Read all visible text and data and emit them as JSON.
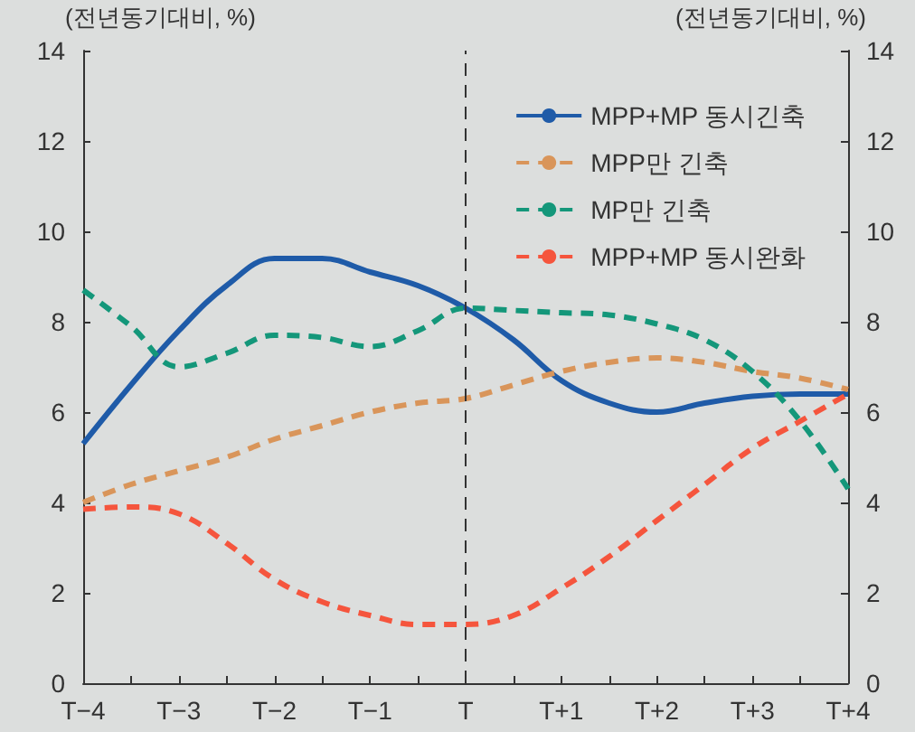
{
  "chart_data": {
    "type": "line",
    "ylabel": "(전년동기대비, %)",
    "y2label": "(전년동기대비, %)",
    "categories": [
      "T−4",
      null,
      "T−3",
      null,
      "T−2",
      null,
      "T−1",
      null,
      "T",
      null,
      "T+1",
      null,
      "T+2",
      null,
      "T+3",
      null,
      "T+4"
    ],
    "series": [
      {
        "name": "MPP+MP 동시긴축",
        "color": "#1f5ba8",
        "line_style": "solid",
        "values": [
          5.3,
          6.6,
          7.8,
          8.8,
          9.4,
          9.4,
          9.1,
          8.8,
          8.3,
          7.6,
          6.7,
          6.2,
          6.0,
          6.2,
          6.35,
          6.4,
          6.4
        ]
      },
      {
        "name": "MPP만 긴축",
        "color": "#d9955a",
        "line_style": "dashed",
        "values": [
          4.0,
          4.4,
          4.7,
          5.0,
          5.4,
          5.7,
          6.0,
          6.2,
          6.3,
          6.6,
          6.9,
          7.1,
          7.2,
          7.1,
          6.9,
          6.75,
          6.5
        ]
      },
      {
        "name": "MP만 긴축",
        "color": "#14977a",
        "line_style": "dashed",
        "values": [
          8.7,
          7.9,
          7.0,
          7.3,
          7.7,
          7.65,
          7.45,
          7.8,
          8.3,
          8.25,
          8.2,
          8.15,
          7.95,
          7.6,
          6.9,
          5.8,
          4.3
        ]
      },
      {
        "name": "MPP+MP 동시완화",
        "color": "#f5553d",
        "line_style": "dashed",
        "values": [
          3.85,
          3.9,
          3.75,
          3.1,
          2.3,
          1.8,
          1.5,
          1.3,
          1.3,
          1.5,
          2.1,
          2.8,
          3.6,
          4.4,
          5.2,
          5.8,
          6.4
        ]
      }
    ],
    "ylim": [
      0,
      14
    ],
    "yticks": [
      0,
      2,
      4,
      6,
      8,
      10,
      12,
      14
    ],
    "y2lim": [
      0,
      14
    ],
    "y2ticks": [
      0,
      2,
      4,
      6,
      8,
      10,
      12,
      14
    ],
    "ref_lines": [
      {
        "axis": "x",
        "value": "T",
        "color": "#333333",
        "line_style": "dashed"
      }
    ],
    "legend": "top right",
    "grid": false,
    "marker": "none"
  }
}
